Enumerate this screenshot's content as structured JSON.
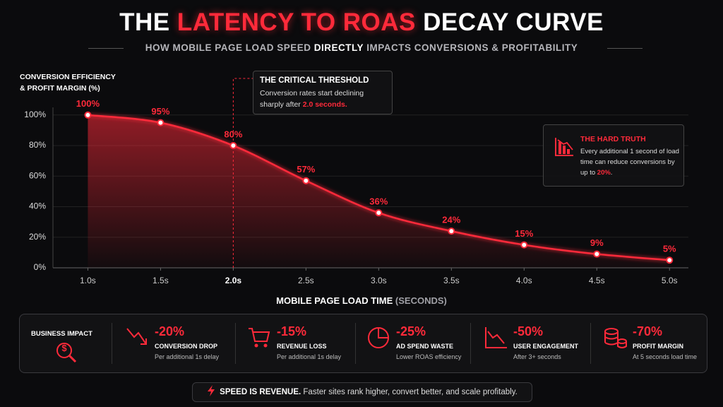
{
  "title": {
    "before": "THE",
    "highlight": "LATENCY TO ROAS",
    "after": "DECAY CURVE"
  },
  "subtitle": {
    "before": "HOW MOBILE PAGE LOAD SPEED",
    "highlight": "DIRECTLY",
    "after": "IMPACTS CONVERSIONS & PROFITABILITY"
  },
  "chart_data": {
    "type": "line",
    "ylabel": [
      "CONVERSION EFFICIENCY",
      "& PROFIT MARGIN (%)"
    ],
    "xlabel": {
      "main": "MOBILE PAGE LOAD TIME",
      "unit": "(SECONDS)"
    },
    "x": [
      1.0,
      1.5,
      2.0,
      2.5,
      3.0,
      3.5,
      4.0,
      4.5,
      5.0
    ],
    "values": [
      100,
      95,
      80,
      57,
      36,
      24,
      15,
      9,
      5
    ],
    "value_labels": [
      "100%",
      "95%",
      "80%",
      "57%",
      "36%",
      "24%",
      "15%",
      "9%",
      "5%"
    ],
    "color": "#ff2a3a",
    "xlim": [
      0.76,
      5.13
    ],
    "ylim": [
      0,
      105
    ],
    "xticks": [
      {
        "value": 1.0,
        "label": "1.0s"
      },
      {
        "value": 1.5,
        "label": "1.5s"
      },
      {
        "value": 2.0,
        "label": "2.0s"
      },
      {
        "value": 2.5,
        "label": "2.5s"
      },
      {
        "value": 3.0,
        "label": "3.0s"
      },
      {
        "value": 3.5,
        "label": "3.5s"
      },
      {
        "value": 4.0,
        "label": "4.0s"
      },
      {
        "value": 4.5,
        "label": "4.5s"
      },
      {
        "value": 5.0,
        "label": "5.0s"
      }
    ],
    "yticks": [
      {
        "value": 0,
        "label": "0%"
      },
      {
        "value": 20,
        "label": "20%"
      },
      {
        "value": 40,
        "label": "40%"
      },
      {
        "value": 60,
        "label": "60%"
      },
      {
        "value": 80,
        "label": "80%"
      },
      {
        "value": 100,
        "label": "100%"
      }
    ],
    "grid": true,
    "threshold_x": 2.0,
    "annotations": [
      {
        "title": "THE CRITICAL THRESHOLD",
        "text": "Conversion rates start declining sharply after",
        "highlight": "2.0 seconds."
      },
      {
        "title": "THE HARD TRUTH",
        "text": "Every additional 1 second of load time can reduce conversions by up to",
        "highlight": "20%",
        "after": "."
      }
    ]
  },
  "impact": {
    "title": "BUSINESS IMPACT",
    "items": [
      {
        "value": "-20%",
        "label": "CONVERSION DROP",
        "note": "Per additional 1s delay"
      },
      {
        "value": "-15%",
        "label": "REVENUE LOSS",
        "note": "Per additional 1s delay"
      },
      {
        "value": "-25%",
        "label": "AD SPEND WASTE",
        "note": "Lower ROAS efficiency"
      },
      {
        "value": "-50%",
        "label": "USER ENGAGEMENT",
        "note": "After 3+ seconds"
      },
      {
        "value": "-70%",
        "label": "PROFIT MARGIN",
        "note": "At 5 seconds load time"
      }
    ]
  },
  "footer": {
    "highlight": "SPEED IS REVENUE.",
    "text": "Faster sites rank higher, convert better, and scale profitably."
  }
}
